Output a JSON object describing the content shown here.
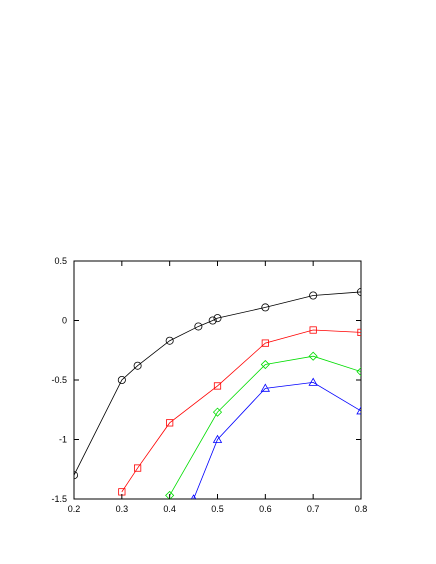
{
  "chart_data": {
    "type": "line",
    "title": "",
    "xlabel": "",
    "ylabel": "",
    "xlim": [
      0.2,
      0.8
    ],
    "ylim": [
      -1.5,
      0.5
    ],
    "x_ticks": [
      0.2,
      0.3,
      0.4,
      0.5,
      0.6,
      0.7,
      0.8
    ],
    "x_tick_labels": [
      "0.2",
      "0.3",
      "0.4",
      "0.5",
      "0.6",
      "0.7",
      "0.8"
    ],
    "y_ticks": [
      -1.5,
      -1,
      -0.5,
      0,
      0.5
    ],
    "y_tick_labels": [
      "-1.5",
      "-1",
      "-0.5",
      "0",
      "0.5"
    ],
    "grid": false,
    "legend": "none",
    "series": [
      {
        "color": "#000000",
        "marker": "circle",
        "points": [
          [
            0.2,
            -1.3
          ],
          [
            0.3,
            -0.5
          ],
          [
            0.333,
            -0.38
          ],
          [
            0.4,
            -0.17
          ],
          [
            0.46,
            -0.05
          ],
          [
            0.49,
            0.0
          ],
          [
            0.5,
            0.02
          ],
          [
            0.6,
            0.11
          ],
          [
            0.7,
            0.21
          ],
          [
            0.8,
            0.24
          ]
        ]
      },
      {
        "color": "#ff0000",
        "marker": "square",
        "points": [
          [
            0.3,
            -1.44
          ],
          [
            0.333,
            -1.24
          ],
          [
            0.4,
            -0.86
          ],
          [
            0.5,
            -0.55
          ],
          [
            0.6,
            -0.19
          ],
          [
            0.7,
            -0.08
          ],
          [
            0.8,
            -0.1
          ]
        ]
      },
      {
        "color": "#00dd00",
        "marker": "diamond",
        "points": [
          [
            0.4,
            -1.47
          ],
          [
            0.5,
            -0.77
          ],
          [
            0.6,
            -0.37
          ],
          [
            0.7,
            -0.3
          ],
          [
            0.8,
            -0.43
          ]
        ]
      },
      {
        "color": "#0000ff",
        "marker": "triangle",
        "points": [
          [
            0.45,
            -1.5
          ],
          [
            0.5,
            -1.0
          ],
          [
            0.6,
            -0.57
          ],
          [
            0.7,
            -0.52
          ],
          [
            0.8,
            -0.76
          ]
        ]
      }
    ]
  }
}
